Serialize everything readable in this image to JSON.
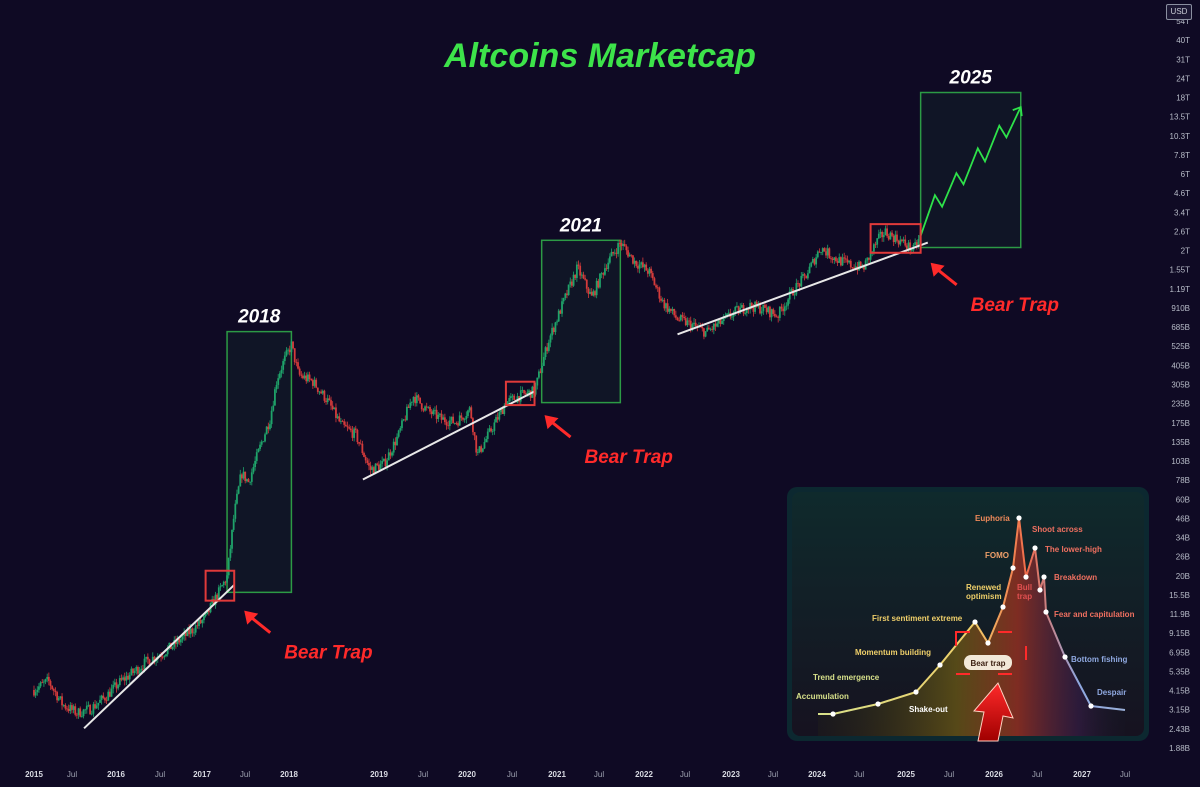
{
  "title": "Altcoins Marketcap",
  "currency": "USD",
  "colors": {
    "background": "#0f0a24",
    "title": "#3de34a",
    "label": "#ff2a2a",
    "candle_up": "#1fa36a",
    "candle_down": "#d43b3b",
    "box_green": "#2c9a45",
    "box_red": "#e03a3a",
    "trendline": "#e8e8e8",
    "projection": "#2ee24a"
  },
  "chart_data": [
    {
      "type": "line",
      "title": "Altcoins Marketcap",
      "y_scale": "log",
      "ylim": [
        1800000000,
        56000000000000
      ],
      "xlim": [
        "2015-01",
        "2027-10"
      ],
      "x_ticks": [
        "2015",
        "Jul",
        "2016",
        "Jul",
        "2017",
        "Jul",
        "2018",
        "2019",
        "Jul",
        "2020",
        "Jul",
        "2021",
        "Jul",
        "2022",
        "Jul",
        "2023",
        "Jul",
        "2024",
        "Jul",
        "2025",
        "Jul",
        "2026",
        "Jul",
        "2027",
        "Jul"
      ],
      "y_ticks": [
        "1.88B",
        "2.43B",
        "3.15B",
        "4.15B",
        "5.35B",
        "6.95B",
        "9.15B",
        "11.9B",
        "15.5B",
        "20B",
        "26B",
        "34B",
        "46B",
        "60B",
        "78B",
        "103B",
        "135B",
        "175B",
        "235B",
        "305B",
        "405B",
        "525B",
        "685B",
        "910B",
        "1.19T",
        "1.55T",
        "2T",
        "2.6T",
        "3.4T",
        "4.6T",
        "6T",
        "7.8T",
        "10.3T",
        "13.5T",
        "18T",
        "24T",
        "31T",
        "40T",
        "54T"
      ],
      "series": [
        {
          "name": "",
          "points": [
            [
              "2015-01",
              4200000000
            ],
            [
              "2015-03",
              4800000000
            ],
            [
              "2015-05",
              3400000000
            ],
            [
              "2015-07",
              3000000000
            ],
            [
              "2015-09",
              3200000000
            ],
            [
              "2015-11",
              3800000000
            ],
            [
              "2016-01",
              4700000000
            ],
            [
              "2016-03",
              5500000000
            ],
            [
              "2016-05",
              6500000000
            ],
            [
              "2016-07",
              7200000000
            ],
            [
              "2016-09",
              8400000000
            ],
            [
              "2016-11",
              10000000000
            ],
            [
              "2017-01",
              12000000000
            ],
            [
              "2017-02",
              15000000000
            ],
            [
              "2017-03",
              18000000000
            ],
            [
              "2017-04",
              22000000000
            ],
            [
              "2017-05",
              55000000000
            ],
            [
              "2017-06",
              100000000000
            ],
            [
              "2017-07",
              88000000000
            ],
            [
              "2017-08",
              120000000000
            ],
            [
              "2017-09",
              165000000000
            ],
            [
              "2017-10",
              220000000000
            ],
            [
              "2017-11",
              400000000000
            ],
            [
              "2017-12",
              520000000000
            ],
            [
              "2018-01",
              650000000000
            ],
            [
              "2018-02",
              420000000000
            ],
            [
              "2018-04",
              380000000000
            ],
            [
              "2018-06",
              290000000000
            ],
            [
              "2018-08",
              200000000000
            ],
            [
              "2018-10",
              175000000000
            ],
            [
              "2018-12",
              105000000000
            ],
            [
              "2019-02",
              115000000000
            ],
            [
              "2019-04",
              175000000000
            ],
            [
              "2019-06",
              310000000000
            ],
            [
              "2019-08",
              250000000000
            ],
            [
              "2019-10",
              220000000000
            ],
            [
              "2019-12",
              210000000000
            ],
            [
              "2020-02",
              255000000000
            ],
            [
              "2020-03",
              130000000000
            ],
            [
              "2020-05",
              190000000000
            ],
            [
              "2020-07",
              280000000000
            ],
            [
              "2020-09",
              310000000000
            ],
            [
              "2020-11",
              330000000000
            ],
            [
              "2021-01",
              700000000000
            ],
            [
              "2021-03",
              1200000000000
            ],
            [
              "2021-05",
              2000000000000
            ],
            [
              "2021-07",
              1300000000000
            ],
            [
              "2021-09",
              2100000000000
            ],
            [
              "2021-11",
              2900000000000
            ],
            [
              "2022-01",
              2200000000000
            ],
            [
              "2022-03",
              1900000000000
            ],
            [
              "2022-05",
              1200000000000
            ],
            [
              "2022-07",
              950000000000
            ],
            [
              "2022-09",
              870000000000
            ],
            [
              "2022-11",
              780000000000
            ],
            [
              "2023-01",
              900000000000
            ],
            [
              "2023-03",
              1050000000000
            ],
            [
              "2023-05",
              1150000000000
            ],
            [
              "2023-07",
              1100000000000
            ],
            [
              "2023-09",
              1000000000000
            ],
            [
              "2023-11",
              1400000000000
            ],
            [
              "2024-01",
              1800000000000
            ],
            [
              "2024-03",
              2700000000000
            ],
            [
              "2024-05",
              2300000000000
            ],
            [
              "2024-07",
              2100000000000
            ],
            [
              "2024-09",
              2000000000000
            ],
            [
              "2024-11",
              3000000000000
            ],
            [
              "2024-12",
              3400000000000
            ],
            [
              "2025-02",
              3000000000000
            ],
            [
              "2025-04",
              2600000000000
            ],
            [
              "2025-05",
              3200000000000
            ]
          ]
        },
        {
          "name": "",
          "points": [
            [
              "2025-05",
              3200000000000
            ],
            [
              "2025-07",
              5800000000000
            ],
            [
              "2025-08",
              4900000000000
            ],
            [
              "2025-10",
              8000000000000
            ],
            [
              "2025-11",
              6800000000000
            ],
            [
              "2026-01",
              11500000000000
            ],
            [
              "2026-02",
              9500000000000
            ],
            [
              "2026-04",
              16000000000000
            ],
            [
              "2026-05",
              13500000000000
            ],
            [
              "2026-07",
              21000000000000
            ]
          ]
        }
      ],
      "trendlines": [
        {
          "from": [
            "2015-08",
            2400000000
          ],
          "to": [
            "2017-05",
            19500000000
          ]
        },
        {
          "from": [
            "2018-11",
            91000000000
          ],
          "to": [
            "2020-11",
            330000000000
          ]
        },
        {
          "from": [
            "2022-07",
            760000000000
          ],
          "to": [
            "2025-06",
            2900000000000
          ]
        }
      ],
      "cycle_boxes": [
        {
          "label": "2018",
          "from": [
            "2017-04",
            17500000000
          ],
          "to": [
            "2018-01",
            790000000000
          ]
        },
        {
          "label": "2021",
          "from": [
            "2020-12",
            280000000000
          ],
          "to": [
            "2021-11",
            3000000000000
          ]
        },
        {
          "label": "2025",
          "from": [
            "2025-05",
            2700000000000
          ],
          "to": [
            "2026-07",
            26000000000000
          ]
        }
      ],
      "bear_traps": [
        {
          "label": "Bear Trap",
          "from": [
            "2017-01",
            15500000000
          ],
          "to": [
            "2017-05",
            24000000000
          ]
        },
        {
          "label": "Bear Trap",
          "from": [
            "2020-07",
            270000000000
          ],
          "to": [
            "2020-11",
            380000000000
          ]
        },
        {
          "label": "Bear Trap",
          "from": [
            "2024-10",
            2500000000000
          ],
          "to": [
            "2025-05",
            3800000000000
          ]
        }
      ]
    },
    {
      "type": "line",
      "title": "",
      "series": [
        {
          "name": "",
          "points": [
            {
              "label": "Accumulation",
              "value": 6
            },
            {
              "label": "Trend emergence",
              "value": 10
            },
            {
              "label": "Shake-out",
              "value": 14
            },
            {
              "label": "Momentum building",
              "value": 27
            },
            {
              "label": "First sentiment extreme",
              "value": 45
            },
            {
              "label": "Bear trap",
              "value": 36
            },
            {
              "label": "Renewed optimism",
              "value": 52
            },
            {
              "label": "FOMO",
              "value": 80
            },
            {
              "label": "Euphoria",
              "value": 100
            },
            {
              "label": "Shoot across",
              "value": 70
            },
            {
              "label": "The lower-high",
              "value": 84
            },
            {
              "label": "Bull trap",
              "value": 68
            },
            {
              "label": "Breakdown",
              "value": 55
            },
            {
              "label": "Fear and capitulation",
              "value": 40
            },
            {
              "label": "Bottom fishing",
              "value": 22
            },
            {
              "label": "Despair",
              "value": 5
            }
          ]
        }
      ]
    }
  ]
}
